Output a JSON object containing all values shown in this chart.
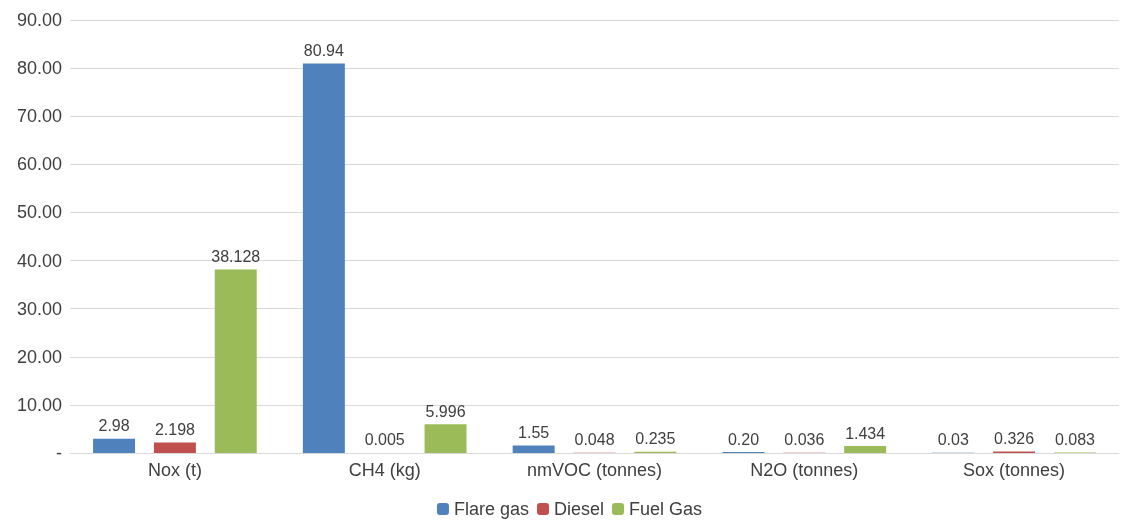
{
  "chart_data": {
    "type": "bar",
    "categories": [
      "Nox (t)",
      "CH4 (kg)",
      "nmVOC (tonnes)",
      "N2O (tonnes)",
      "Sox (tonnes)"
    ],
    "series": [
      {
        "name": "Flare gas",
        "color": "#4f81bd",
        "values": [
          2.98,
          80.94,
          1.55,
          0.2,
          0.03
        ],
        "value_labels": [
          "2.98",
          "80.94",
          "1.55",
          "0.20",
          "0.03"
        ]
      },
      {
        "name": "Diesel",
        "color": "#c0504d",
        "values": [
          2.198,
          0.005,
          0.048,
          0.036,
          0.326
        ],
        "value_labels": [
          "2.198",
          "0.005",
          "0.048",
          "0.036",
          "0.326"
        ]
      },
      {
        "name": "Fuel Gas",
        "color": "#9bbb59",
        "values": [
          38.128,
          5.996,
          0.235,
          1.434,
          0.083
        ],
        "value_labels": [
          "38.128",
          "5.996",
          "0.235",
          "1.434",
          "0.083"
        ]
      }
    ],
    "ylim": [
      0,
      90
    ],
    "yticks": [
      {
        "value": 0,
        "label": "-"
      },
      {
        "value": 10,
        "label": "10.00"
      },
      {
        "value": 20,
        "label": "20.00"
      },
      {
        "value": 30,
        "label": "30.00"
      },
      {
        "value": 40,
        "label": "40.00"
      },
      {
        "value": 50,
        "label": "50.00"
      },
      {
        "value": 60,
        "label": "60.00"
      },
      {
        "value": 70,
        "label": "70.00"
      },
      {
        "value": 80,
        "label": "80.00"
      },
      {
        "value": 90,
        "label": "90.00"
      }
    ],
    "grid": "y",
    "legend": "bottom"
  }
}
